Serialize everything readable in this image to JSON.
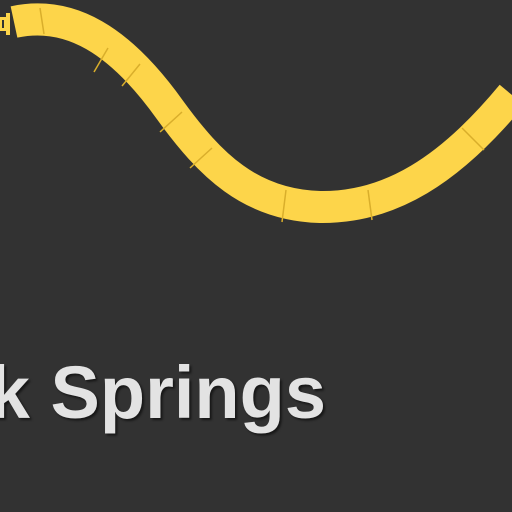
{
  "screen": {
    "background_color": "#323232"
  },
  "track": {
    "icon": "wavy-track-segments",
    "color": "#fdd54a",
    "seam_color": "#d9ae2b",
    "end_cap_icon": "track-end-connector"
  },
  "title": {
    "text": "k Springs",
    "color": "#e3e3e3"
  }
}
